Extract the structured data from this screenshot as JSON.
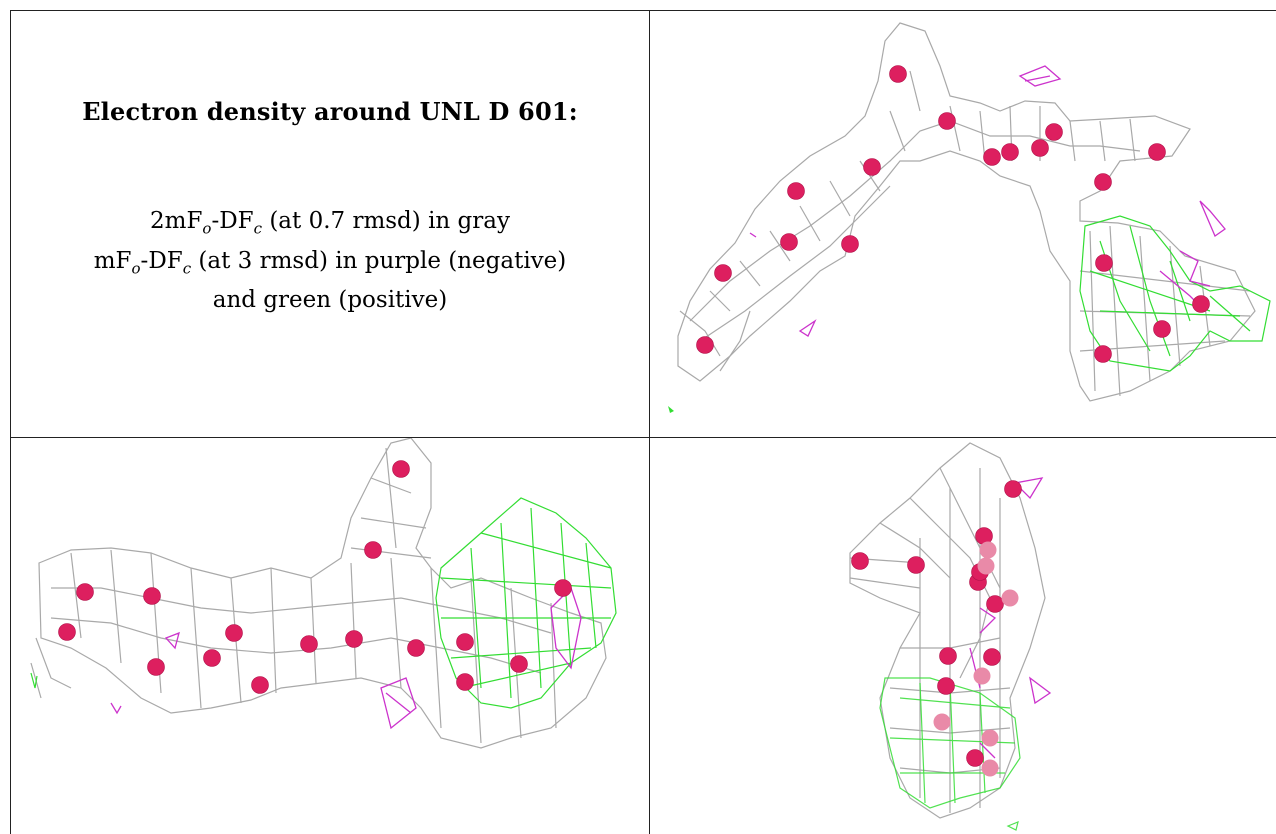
{
  "info": {
    "title": "Electron density around UNL D 601:",
    "line1": {
      "a": "2mF",
      "o": "o",
      "b": "-DF",
      "c": "c",
      "rest": " (at 0.7 rmsd) in gray"
    },
    "line2": {
      "a": "mF",
      "o": "o",
      "b": "-DF",
      "c": "c",
      "rest": " (at 3 rmsd) in purple (negative)"
    },
    "line3": "and green (positive)"
  },
  "colors": {
    "mesh_2fofc": "#a9a9a9",
    "mesh_negative": "#cc33cc",
    "mesh_positive": "#33dd33",
    "atom": "#dd1f5f"
  },
  "views": [
    {
      "name": "view-top-right",
      "atom_count": 20
    },
    {
      "name": "view-bottom-left",
      "atom_count": 17
    },
    {
      "name": "view-bottom-right",
      "atom_count": 20
    }
  ]
}
